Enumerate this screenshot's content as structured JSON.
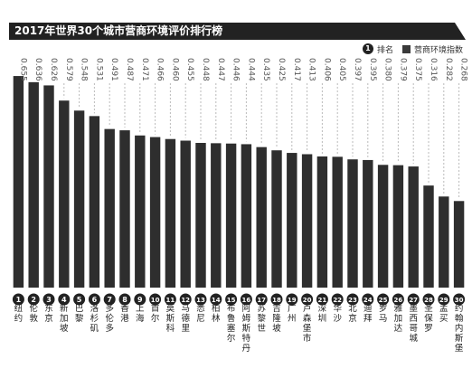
{
  "chart_data": {
    "type": "bar",
    "title": "2017年世界30个城市营商环境评价排行榜",
    "legend": [
      {
        "marker": "circle",
        "label": "排名",
        "marker_text": "1"
      },
      {
        "marker": "square",
        "label": "营商环境指数"
      }
    ],
    "legend_position": "top-right",
    "grid": false,
    "ylim": [
      0,
      0.7
    ],
    "colors": {
      "bar": "#2e2e2e",
      "circle": "#222222",
      "title_bg": "#222222",
      "dash": "#bbbbbb"
    },
    "categories": [
      {
        "rank": "1",
        "name": "纽约",
        "value": "0.655"
      },
      {
        "rank": "2",
        "name": "伦敦",
        "value": "0.636"
      },
      {
        "rank": "3",
        "name": "东京",
        "value": "0.626"
      },
      {
        "rank": "4",
        "name": "新加坡",
        "value": "0.579"
      },
      {
        "rank": "5",
        "name": "巴黎",
        "value": "0.548"
      },
      {
        "rank": "6",
        "name": "洛杉矶",
        "value": "0.531"
      },
      {
        "rank": "7",
        "name": "多伦多",
        "value": "0.491"
      },
      {
        "rank": "8",
        "name": "香港",
        "value": "0.487"
      },
      {
        "rank": "9",
        "name": "上海",
        "value": "0.471"
      },
      {
        "rank": "10",
        "name": "首尔",
        "value": "0.466"
      },
      {
        "rank": "11",
        "name": "莫斯科",
        "value": "0.460"
      },
      {
        "rank": "12",
        "name": "马德里",
        "value": "0.455"
      },
      {
        "rank": "13",
        "name": "悉尼",
        "value": "0.448"
      },
      {
        "rank": "14",
        "name": "柏林",
        "value": "0.447"
      },
      {
        "rank": "15",
        "name": "布鲁塞尔",
        "value": "0.446"
      },
      {
        "rank": "16",
        "name": "阿姆斯特丹",
        "value": "0.444"
      },
      {
        "rank": "17",
        "name": "苏黎世",
        "value": "0.435"
      },
      {
        "rank": "18",
        "name": "吉隆坡",
        "value": "0.425"
      },
      {
        "rank": "19",
        "name": "广州",
        "value": "0.417"
      },
      {
        "rank": "20",
        "name": "卢森堡市",
        "value": "0.413"
      },
      {
        "rank": "21",
        "name": "深圳",
        "value": "0.406"
      },
      {
        "rank": "22",
        "name": "华沙",
        "value": "0.405"
      },
      {
        "rank": "23",
        "name": "北京",
        "value": "0.397"
      },
      {
        "rank": "24",
        "name": "迪拜",
        "value": "0.395"
      },
      {
        "rank": "25",
        "name": "罗马",
        "value": "0.380"
      },
      {
        "rank": "26",
        "name": "雅加达",
        "value": "0.379"
      },
      {
        "rank": "27",
        "name": "墨西哥城",
        "value": "0.375"
      },
      {
        "rank": "28",
        "name": "圣保罗",
        "value": "0.316"
      },
      {
        "rank": "29",
        "name": "孟买",
        "value": "0.282"
      },
      {
        "rank": "30",
        "name": "约翰内斯堡",
        "value": "0.268"
      }
    ]
  }
}
